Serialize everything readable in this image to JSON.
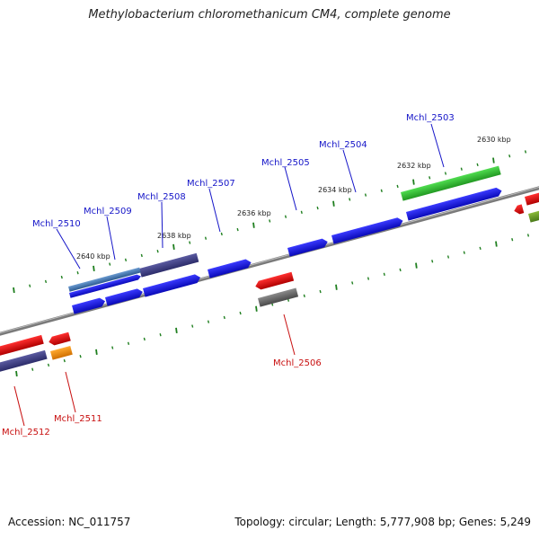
{
  "title": "Methylobacterium chloromethanicum CM4, complete genome",
  "footer": {
    "accession": "Accession: NC_011757",
    "stats": "Topology: circular; Length: 5,777,908 bp; Genes: 5,249"
  },
  "colors": {
    "forward_cds": "#1212e0",
    "reverse_cds": "#e01212",
    "tick": "#1f7f1f",
    "backbone": "#888888",
    "green_feature": "#38c838",
    "purple_feature": "#4a4a8c",
    "gray_feature": "#666666",
    "orange_feature": "#f09010",
    "steel_feature": "#4a7ab0",
    "olive_feature": "#6a9a2a"
  },
  "scale_labels": [
    "2630 kbp",
    "2632 kbp",
    "2634 kbp",
    "2636 kbp",
    "2638 kbp",
    "2640 kbp"
  ],
  "gene_labels": {
    "forward": [
      "Mchl_2503",
      "Mchl_2504",
      "Mchl_2505",
      "Mchl_2507",
      "Mchl_2508",
      "Mchl_2509",
      "Mchl_2510"
    ],
    "reverse": [
      "Mchl_2506",
      "Mchl_2511",
      "Mchl_2512"
    ]
  }
}
